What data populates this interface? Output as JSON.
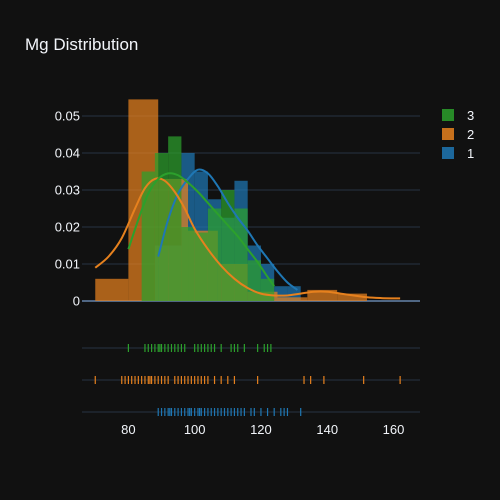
{
  "chart_data": {
    "type": "histogram",
    "title": "Mg Distribution",
    "xlabel": "",
    "ylabel": "",
    "xlim": [
      66,
      168
    ],
    "ylim": [
      0,
      0.0565
    ],
    "x_ticks": [
      80,
      100,
      120,
      140,
      160
    ],
    "y_ticks": [
      0,
      0.01,
      0.02,
      0.03,
      0.04,
      0.05
    ],
    "y_tick_labels": [
      "0",
      "0.01",
      "0.02",
      "0.03",
      "0.04",
      "0.05"
    ],
    "grid": true,
    "legend_position": "top-right",
    "series": [
      {
        "name": "1",
        "color": "#1f77b4",
        "hist": [
          {
            "x0": 88,
            "x1": 92,
            "y": 0.015
          },
          {
            "x0": 92,
            "x1": 96,
            "y": 0.015
          },
          {
            "x0": 96,
            "x1": 100,
            "y": 0.04
          },
          {
            "x0": 100,
            "x1": 104,
            "y": 0.035
          },
          {
            "x0": 104,
            "x1": 108,
            "y": 0.0275
          },
          {
            "x0": 108,
            "x1": 112,
            "y": 0.0225
          },
          {
            "x0": 112,
            "x1": 116,
            "y": 0.0325
          },
          {
            "x0": 116,
            "x1": 120,
            "y": 0.015
          },
          {
            "x0": 120,
            "x1": 124,
            "y": 0.01
          },
          {
            "x0": 124,
            "x1": 128,
            "y": 0.004
          },
          {
            "x0": 128,
            "x1": 132,
            "y": 0.004
          }
        ],
        "kde_x": [
          89,
          92,
          95,
          98,
          101,
          104,
          107,
          110,
          113,
          116,
          119,
          122,
          125,
          128,
          131
        ],
        "kde_y": [
          0.012,
          0.022,
          0.029,
          0.033,
          0.0355,
          0.0345,
          0.031,
          0.0265,
          0.0225,
          0.019,
          0.015,
          0.0115,
          0.008,
          0.005,
          0.003
        ],
        "rug": [
          89,
          90,
          91,
          92,
          92.5,
          93,
          94,
          95,
          96,
          97,
          98,
          98.5,
          99,
          100,
          101,
          101.5,
          102,
          103,
          104,
          105,
          106,
          107,
          108,
          109,
          110,
          111,
          112,
          113,
          114,
          115,
          117,
          118,
          120,
          122,
          124,
          126,
          127,
          128,
          132
        ]
      },
      {
        "name": "2",
        "color": "#e6811e",
        "hist": [
          {
            "x0": 70,
            "x1": 80,
            "y": 0.006
          },
          {
            "x0": 80,
            "x1": 89,
            "y": 0.0545
          },
          {
            "x0": 89,
            "x1": 98,
            "y": 0.033
          },
          {
            "x0": 98,
            "x1": 107,
            "y": 0.019
          },
          {
            "x0": 107,
            "x1": 116,
            "y": 0.01
          },
          {
            "x0": 116,
            "x1": 125,
            "y": 0.0025
          },
          {
            "x0": 125,
            "x1": 134,
            "y": 0.001
          },
          {
            "x0": 134,
            "x1": 143,
            "y": 0.003
          },
          {
            "x0": 143,
            "x1": 152,
            "y": 0.002
          }
        ],
        "kde_x": [
          70,
          74,
          78,
          82,
          85,
          88,
          91,
          94,
          97,
          100,
          104,
          108,
          112,
          116,
          120,
          124,
          128,
          132,
          136,
          140,
          144,
          148,
          152,
          156,
          162
        ],
        "kde_y": [
          0.009,
          0.012,
          0.017,
          0.025,
          0.0305,
          0.033,
          0.0325,
          0.0295,
          0.025,
          0.0195,
          0.014,
          0.0095,
          0.006,
          0.0035,
          0.002,
          0.0015,
          0.0015,
          0.002,
          0.0025,
          0.0025,
          0.002,
          0.0015,
          0.001,
          0.0008,
          0.0007
        ],
        "rug": [
          70,
          78,
          79,
          80,
          81,
          82,
          83,
          84,
          85,
          86,
          86.5,
          87,
          88,
          89,
          90,
          91,
          92,
          94,
          95,
          96,
          97,
          98,
          99,
          100,
          101,
          102,
          103,
          104,
          106,
          108,
          110,
          112,
          119,
          133,
          135,
          139,
          151,
          162
        ]
      },
      {
        "name": "3",
        "color": "#2ca02c",
        "hist": [
          {
            "x0": 84,
            "x1": 88,
            "y": 0.035
          },
          {
            "x0": 88,
            "x1": 92,
            "y": 0.04
          },
          {
            "x0": 92,
            "x1": 96,
            "y": 0.0445
          },
          {
            "x0": 96,
            "x1": 100,
            "y": 0.02
          },
          {
            "x0": 100,
            "x1": 104,
            "y": 0.0185
          },
          {
            "x0": 104,
            "x1": 108,
            "y": 0.025
          },
          {
            "x0": 108,
            "x1": 112,
            "y": 0.03
          },
          {
            "x0": 112,
            "x1": 116,
            "y": 0.025
          },
          {
            "x0": 116,
            "x1": 120,
            "y": 0.011
          },
          {
            "x0": 120,
            "x1": 124,
            "y": 0.006
          }
        ],
        "kde_x": [
          80,
          83,
          86,
          89,
          92,
          95,
          98,
          101,
          104,
          107,
          110,
          113,
          116,
          119,
          122,
          124
        ],
        "kde_y": [
          0.014,
          0.022,
          0.029,
          0.033,
          0.0345,
          0.034,
          0.032,
          0.0295,
          0.0265,
          0.0235,
          0.0205,
          0.0175,
          0.014,
          0.0105,
          0.0065,
          0.004
        ],
        "rug": [
          80,
          85,
          86,
          87,
          88,
          89,
          89.5,
          90,
          91,
          92,
          93,
          94,
          95,
          96,
          97,
          100,
          101,
          102,
          103,
          104,
          105,
          106,
          108,
          111,
          112,
          113,
          115,
          119,
          121,
          122,
          123
        ]
      }
    ],
    "legend_order": [
      "3",
      "2",
      "1"
    ]
  }
}
